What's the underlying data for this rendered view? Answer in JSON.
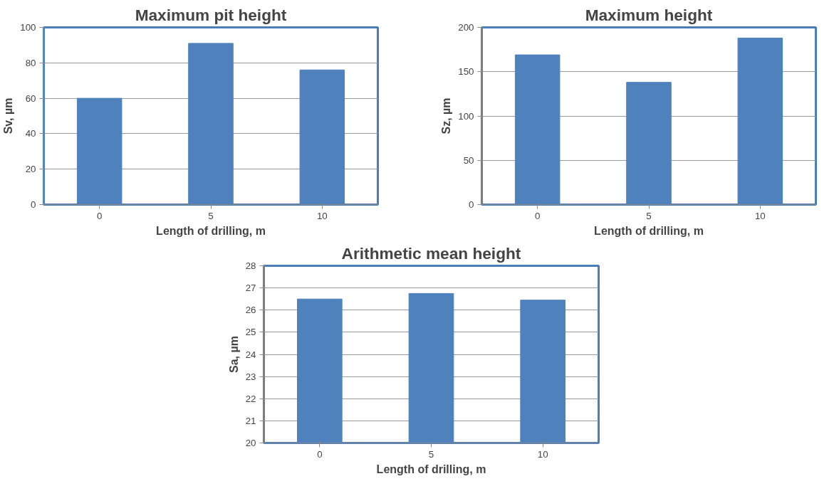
{
  "chart_data": [
    {
      "type": "bar",
      "title": "Maximum pit height",
      "xlabel": "Length of drilling, m",
      "ylabel": "Sv, µm",
      "categories": [
        "0",
        "5",
        "10"
      ],
      "values": [
        60,
        91,
        76
      ],
      "color": "#4f81bd",
      "ylim": [
        0,
        100
      ],
      "yticks": [
        0,
        20,
        40,
        60,
        80,
        100
      ],
      "grid": "y"
    },
    {
      "type": "bar",
      "title": "Maximum height",
      "xlabel": "Length of drilling, m",
      "ylabel": "Sz, µm",
      "categories": [
        "0",
        "5",
        "10"
      ],
      "values": [
        169,
        138,
        188
      ],
      "color": "#4f81bd",
      "ylim": [
        0,
        200
      ],
      "yticks": [
        0,
        50,
        100,
        150,
        200
      ],
      "grid": "y"
    },
    {
      "type": "bar",
      "title": "Arithmetic mean height",
      "xlabel": "Length of drilling, m",
      "ylabel": "Sa, µm",
      "categories": [
        "0",
        "5",
        "10"
      ],
      "values": [
        26.5,
        26.75,
        26.45
      ],
      "color": "#4f81bd",
      "ylim": [
        20,
        28
      ],
      "yticks": [
        20,
        21,
        22,
        23,
        24,
        25,
        26,
        27,
        28
      ],
      "grid": "y"
    }
  ]
}
